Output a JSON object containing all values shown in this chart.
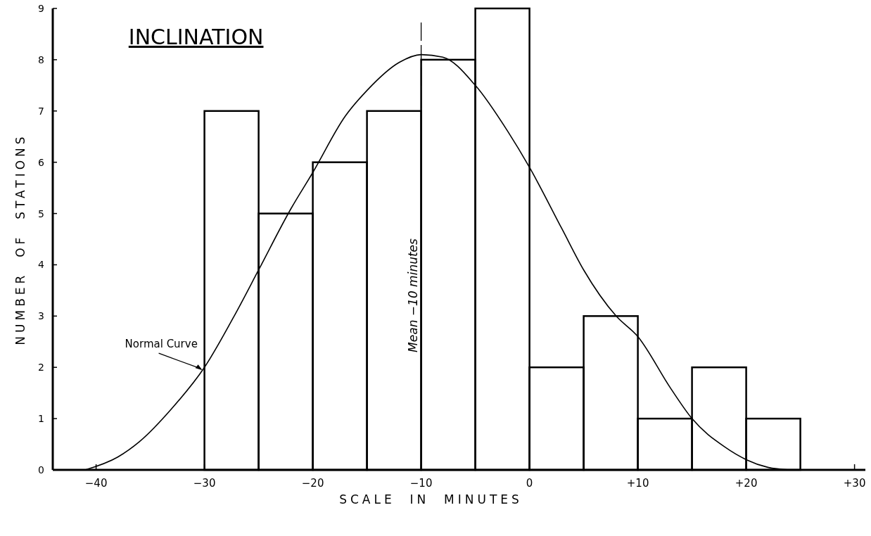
{
  "chart_data": {
    "type": "histogram",
    "title": "INCLINATION",
    "xlabel": "SCALE  IN  MINUTES",
    "ylabel": "NUMBER  OF  STATIONS",
    "series": [
      {
        "color": "#000000",
        "bins": [
          -30,
          -25,
          -20,
          -15,
          -10,
          -5,
          0,
          5,
          10,
          15,
          20,
          25
        ],
        "values": [
          7,
          5,
          6,
          7,
          8,
          9,
          2,
          3,
          1,
          2,
          1
        ]
      },
      {
        "type": "line",
        "name": "Normal Curve",
        "color": "#000000",
        "x": [
          -41,
          -38,
          -36,
          -33,
          -30,
          -27,
          -25,
          -22,
          -20,
          -17,
          -15,
          -12,
          -10,
          -8,
          -5,
          -2,
          0,
          3,
          5,
          8,
          10,
          13,
          15,
          18,
          20,
          22,
          24
        ],
        "values": [
          0,
          0.25,
          0.55,
          1.2,
          2.0,
          3.1,
          3.9,
          5.1,
          5.8,
          6.9,
          7.4,
          7.95,
          8.1,
          8.05,
          7.5,
          6.6,
          5.9,
          4.7,
          3.9,
          3.0,
          2.6,
          1.6,
          1.0,
          0.45,
          0.2,
          0.05,
          0
        ]
      }
    ],
    "xlim": [
      -44,
      31
    ],
    "xticks": [
      {
        "value": -40,
        "label": "−40"
      },
      {
        "value": -30,
        "label": "−30"
      },
      {
        "value": -20,
        "label": "−20"
      },
      {
        "value": -10,
        "label": "−10"
      },
      0,
      {
        "value": 10,
        "label": "+10"
      },
      {
        "value": 20,
        "label": "+20"
      },
      {
        "value": 30,
        "label": "+30"
      }
    ],
    "ylim": [
      0,
      9
    ],
    "yticks": [
      0,
      1,
      2,
      3,
      4,
      5,
      6,
      7,
      8,
      9
    ],
    "ref_lines": [
      {
        "axis": "x",
        "value": -10,
        "label": "Mean −10 minutes",
        "line_style": "dashed",
        "color": "#000000"
      }
    ],
    "grid": false
  }
}
